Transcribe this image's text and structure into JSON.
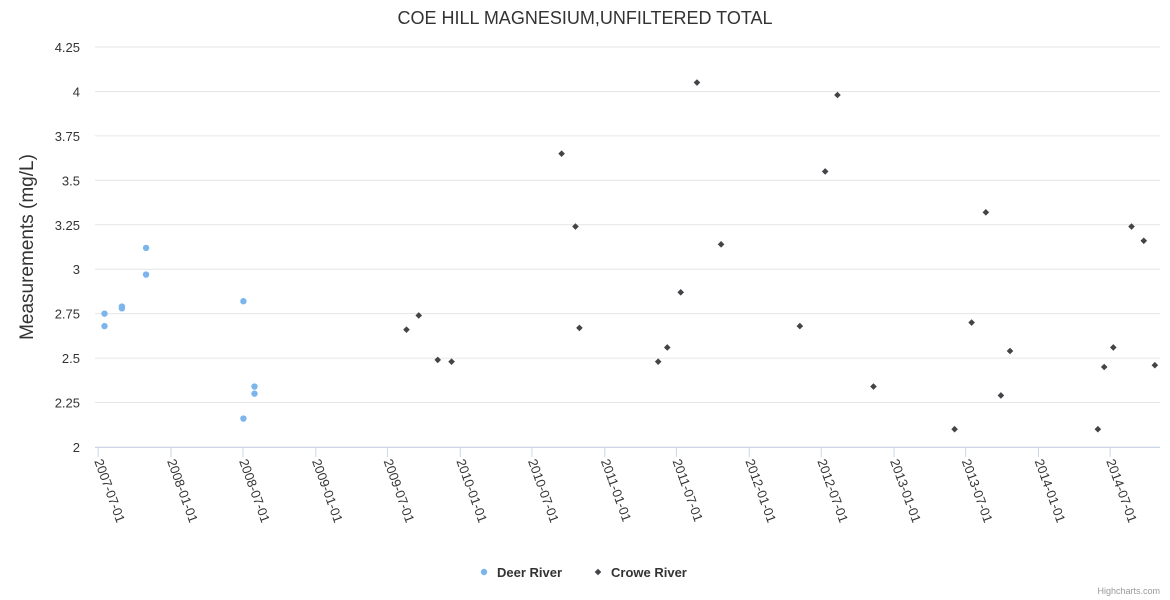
{
  "chart_data": {
    "type": "scatter",
    "title": "COE HILL MAGNESIUM,UNFILTERED TOTAL",
    "xlabel": "",
    "ylabel": "Measurements (mg/L)",
    "ylim": [
      2,
      4.25
    ],
    "yticks": [
      "2",
      "2.25",
      "2.5",
      "2.75",
      "3",
      "3.25",
      "3.5",
      "3.75",
      "4",
      "4.25"
    ],
    "xlim": [
      "2007-06-23",
      "2014-11-04"
    ],
    "xticks": [
      "2007-07-01",
      "2008-01-01",
      "2008-07-01",
      "2009-01-01",
      "2009-07-01",
      "2010-01-01",
      "2010-07-01",
      "2011-01-01",
      "2011-07-01",
      "2012-01-01",
      "2012-07-01",
      "2013-01-01",
      "2013-07-01",
      "2014-01-01",
      "2014-07-01"
    ],
    "grid": true,
    "legend_position": "bottom-center",
    "credit": "Highcharts.com",
    "series": [
      {
        "name": "Deer River",
        "color": "#7cb5ec",
        "marker": "circle",
        "points": [
          [
            "2007-07-17",
            2.75
          ],
          [
            "2007-07-17",
            2.68
          ],
          [
            "2007-08-30",
            2.79
          ],
          [
            "2007-08-30",
            2.78
          ],
          [
            "2007-10-30",
            3.12
          ],
          [
            "2007-10-30",
            2.97
          ],
          [
            "2008-07-02",
            2.82
          ],
          [
            "2008-07-02",
            2.16
          ],
          [
            "2008-07-30",
            2.34
          ],
          [
            "2008-07-30",
            2.3
          ]
        ]
      },
      {
        "name": "Crowe River",
        "color": "#434348",
        "marker": "diamond",
        "points": [
          [
            "2009-08-18",
            2.66
          ],
          [
            "2009-09-18",
            2.74
          ],
          [
            "2009-11-05",
            2.49
          ],
          [
            "2009-12-10",
            2.48
          ],
          [
            "2010-09-14",
            3.65
          ],
          [
            "2010-10-19",
            3.24
          ],
          [
            "2010-10-29",
            2.67
          ],
          [
            "2011-05-16",
            2.48
          ],
          [
            "2011-06-08",
            2.56
          ],
          [
            "2011-07-12",
            2.87
          ],
          [
            "2011-08-22",
            4.05
          ],
          [
            "2011-10-22",
            3.14
          ],
          [
            "2012-05-08",
            2.68
          ],
          [
            "2012-07-11",
            3.55
          ],
          [
            "2012-08-11",
            3.98
          ],
          [
            "2012-11-10",
            2.34
          ],
          [
            "2013-06-03",
            2.1
          ],
          [
            "2013-07-16",
            2.7
          ],
          [
            "2013-08-21",
            3.32
          ],
          [
            "2013-09-28",
            2.29
          ],
          [
            "2013-10-21",
            2.54
          ],
          [
            "2014-05-31",
            2.1
          ],
          [
            "2014-06-16",
            2.45
          ],
          [
            "2014-07-09",
            2.56
          ],
          [
            "2014-08-24",
            3.24
          ],
          [
            "2014-09-24",
            3.16
          ],
          [
            "2014-10-22",
            2.46
          ]
        ]
      }
    ]
  }
}
